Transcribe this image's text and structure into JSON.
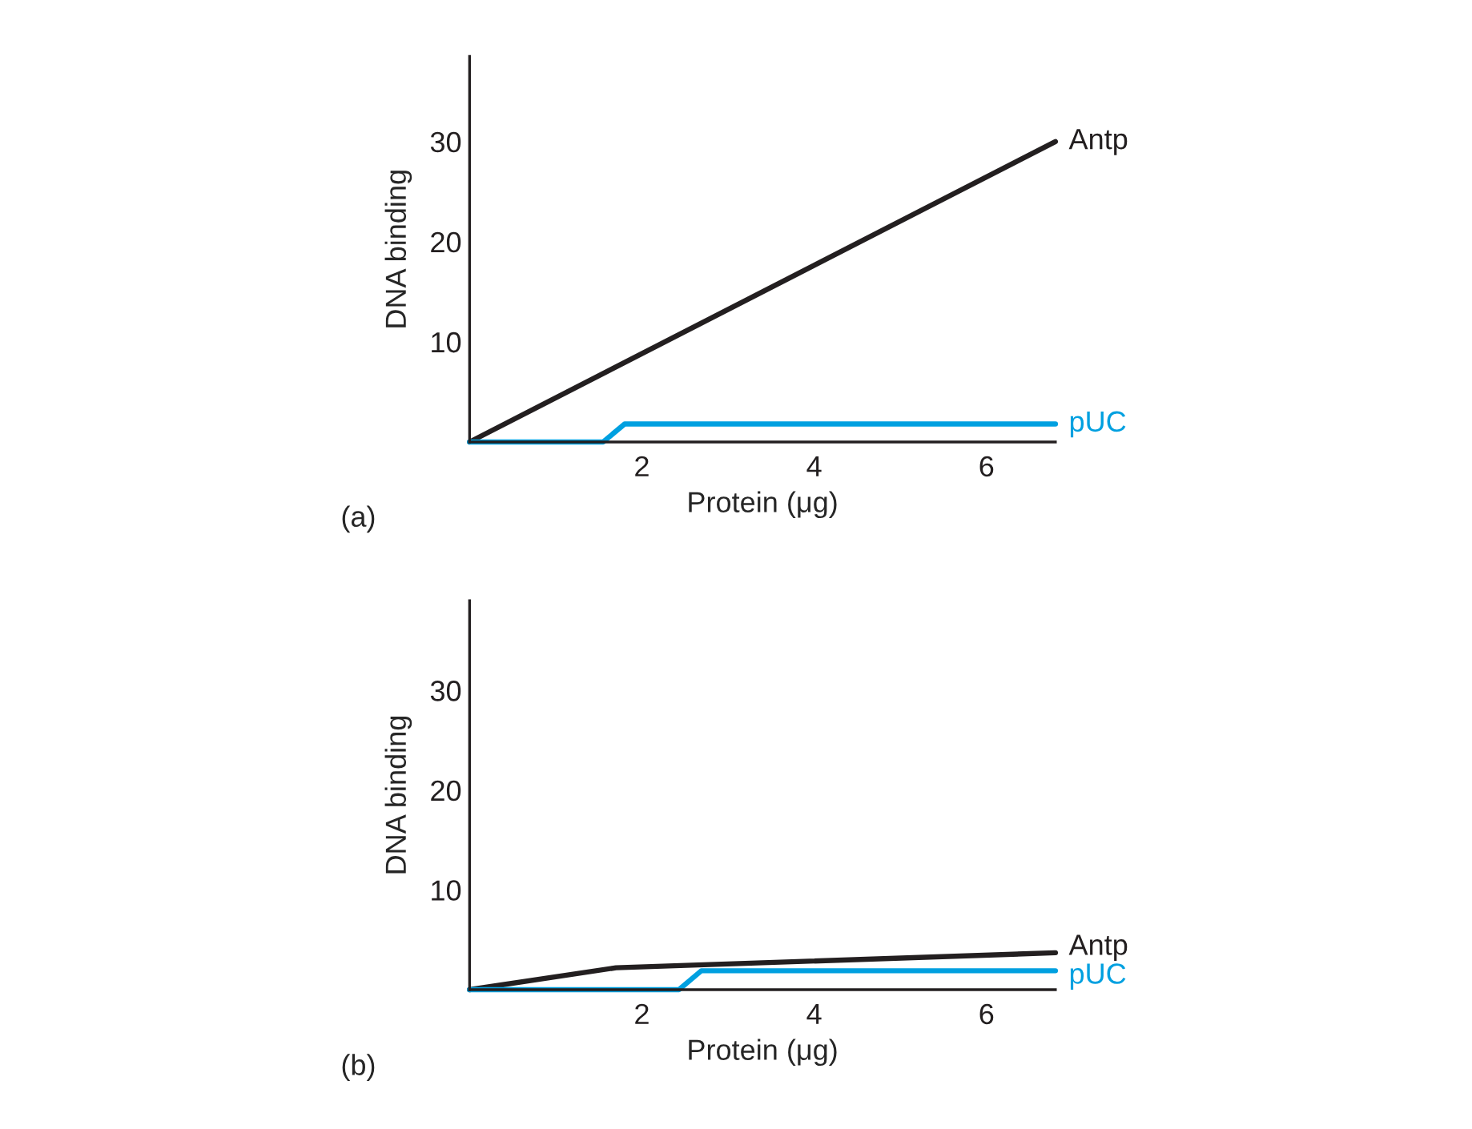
{
  "chart_data": [
    {
      "type": "line",
      "xlabel": "Protein (μg)",
      "ylabel": "DNA binding",
      "annotations": [
        "(a)"
      ],
      "xlim": [
        0,
        6.8
      ],
      "ylim": [
        0,
        38.5
      ],
      "xticks": [
        2,
        4,
        6
      ],
      "yticks": [
        10,
        20,
        30
      ],
      "legend": false,
      "grid": false,
      "series": [
        {
          "name": "Antp",
          "color": "#231f20",
          "x": [
            0,
            6.8
          ],
          "values": [
            0,
            30
          ]
        },
        {
          "name": "pUC",
          "color": "#00a0e0",
          "x": [
            0,
            1.55,
            1.8,
            6.8
          ],
          "values": [
            0,
            0,
            1.8,
            1.8
          ]
        }
      ]
    },
    {
      "type": "line",
      "xlabel": "Protein (μg)",
      "ylabel": "DNA binding",
      "annotations": [
        "(b)"
      ],
      "xlim": [
        0,
        6.8
      ],
      "ylim": [
        0,
        39
      ],
      "xticks": [
        2,
        4,
        6
      ],
      "yticks": [
        10,
        20,
        30
      ],
      "legend": false,
      "grid": false,
      "series": [
        {
          "name": "Antp",
          "color": "#231f20",
          "x": [
            0,
            1.7,
            6.8
          ],
          "values": [
            0,
            2.2,
            3.7
          ]
        },
        {
          "name": "pUC",
          "color": "#00a0e0",
          "x": [
            0,
            2.43,
            2.69,
            6.8
          ],
          "values": [
            0,
            0,
            1.9,
            1.9
          ]
        }
      ]
    }
  ]
}
